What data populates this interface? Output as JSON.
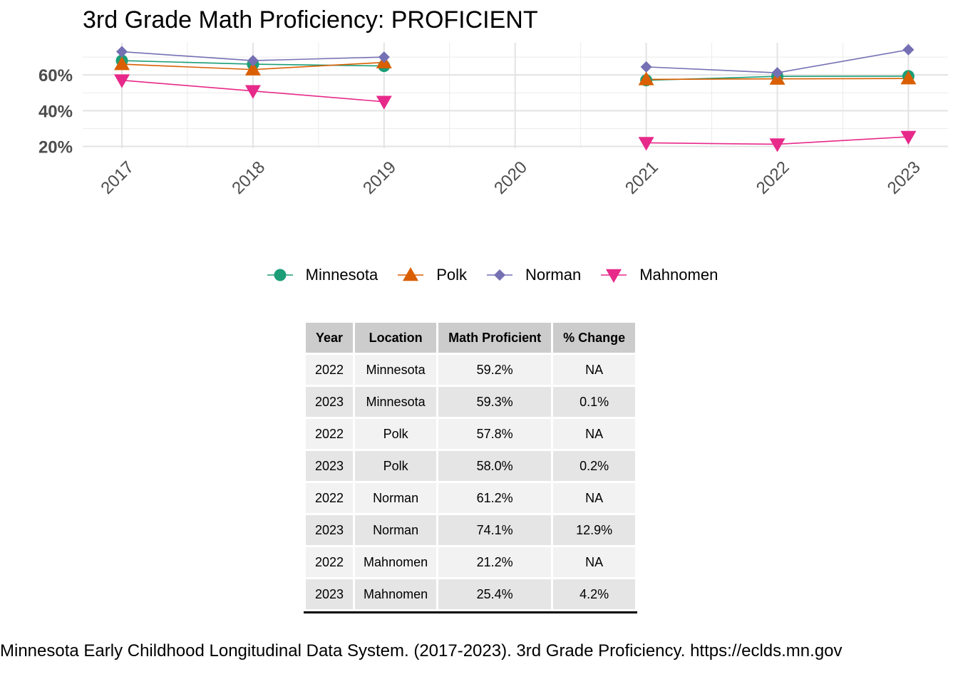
{
  "chart_data": {
    "type": "line",
    "title": "3rd Grade Math Proficiency: PROFICIENT",
    "x": [
      "2017",
      "2018",
      "2019",
      "2020",
      "2021",
      "2022",
      "2023"
    ],
    "y_ticks": [
      "20%",
      "40%",
      "60%"
    ],
    "ylim": [
      0.19,
      0.78
    ],
    "grid": "on",
    "legend_position": "bottom",
    "series": [
      {
        "name": "Minnesota",
        "marker": "circle",
        "color": "#1b9e77",
        "values": [
          0.68,
          0.66,
          0.65,
          null,
          0.57,
          0.592,
          0.593
        ]
      },
      {
        "name": "Polk",
        "marker": "triangle-up",
        "color": "#d95f02",
        "values": [
          0.66,
          0.63,
          0.67,
          null,
          0.575,
          0.578,
          0.58
        ]
      },
      {
        "name": "Norman",
        "marker": "diamond",
        "color": "#7570b3",
        "values": [
          0.73,
          0.68,
          0.7,
          null,
          0.645,
          0.612,
          0.741
        ]
      },
      {
        "name": "Mahnomen",
        "marker": "triangle-down",
        "color": "#e7298a",
        "values": [
          0.57,
          0.51,
          0.45,
          null,
          0.22,
          0.212,
          0.254
        ]
      }
    ]
  },
  "table": {
    "headers": [
      "Year",
      "Location",
      "Math Proficient",
      "% Change"
    ],
    "rows": [
      [
        "2022",
        "Minnesota",
        "59.2%",
        "NA"
      ],
      [
        "2023",
        "Minnesota",
        "59.3%",
        "0.1%"
      ],
      [
        "2022",
        "Polk",
        "57.8%",
        "NA"
      ],
      [
        "2023",
        "Polk",
        "58.0%",
        "0.2%"
      ],
      [
        "2022",
        "Norman",
        "61.2%",
        "NA"
      ],
      [
        "2023",
        "Norman",
        "74.1%",
        "12.9%"
      ],
      [
        "2022",
        "Mahnomen",
        "21.2%",
        "NA"
      ],
      [
        "2023",
        "Mahnomen",
        "25.4%",
        "4.2%"
      ]
    ]
  },
  "caption": "Minnesota Early Childhood Longitudinal Data System. (2017-2023). 3rd Grade Proficiency. https://eclds.mn.gov"
}
